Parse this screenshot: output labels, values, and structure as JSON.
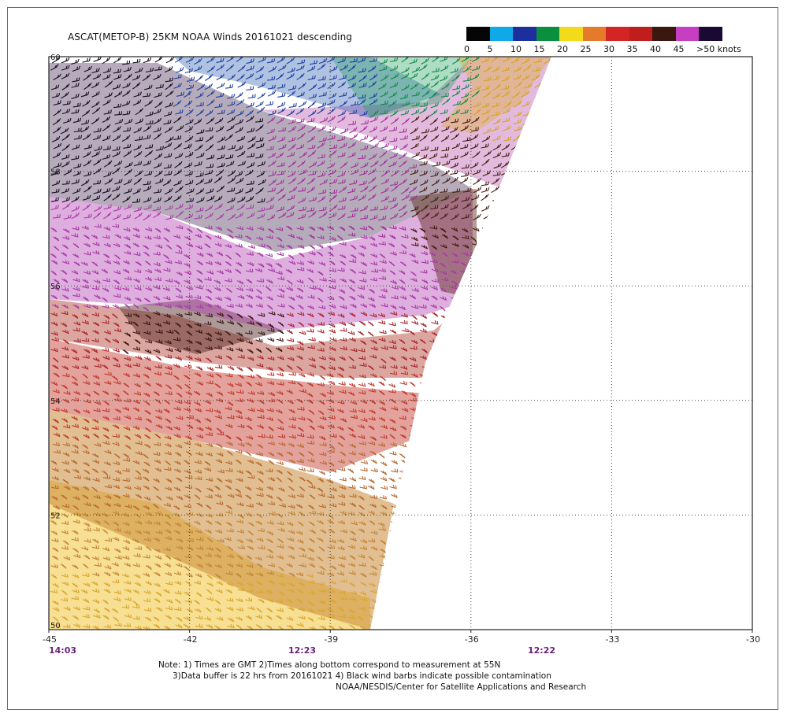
{
  "title": "ASCAT(METOP-B) 25KM NOAA Winds 20161021 descending",
  "colorbar": {
    "labels": [
      "0",
      "5",
      "10",
      "15",
      "20",
      "25",
      "30",
      "35",
      "40",
      "45",
      ">50 knots"
    ],
    "colors": [
      "#050505",
      "#10a9e8",
      "#1c2f9c",
      "#0a8f3f",
      "#f3da1a",
      "#e47a2a",
      "#d42525",
      "#c01d1d",
      "#3a1810",
      "#c63fc3",
      "#1a0a33"
    ]
  },
  "axes": {
    "lat_labels": [
      "60",
      "58",
      "56",
      "54",
      "52",
      "50"
    ],
    "lon_labels": [
      "-45",
      "-42",
      "-39",
      "-36",
      "-33",
      "-30"
    ],
    "time_labels": [
      "14:03",
      "12:23",
      "12:22"
    ]
  },
  "chart_data": {
    "type": "map",
    "region": {
      "lat_range": [
        50,
        60
      ],
      "lon_range": [
        -45,
        -30
      ]
    },
    "units": "knots",
    "speed_bins": [
      0,
      5,
      10,
      15,
      20,
      25,
      30,
      35,
      40,
      45,
      50
    ],
    "grid": true
  },
  "notes": {
    "line1": "Note: 1) Times are GMT 2)Times along bottom correspond to measurement at 55N",
    "line2": "3)Data buffer is 22 hrs from 20161021 4) Black wind barbs indicate possible contamination",
    "line3": "NOAA/NESDIS/Center for Satellite Applications and Research"
  }
}
